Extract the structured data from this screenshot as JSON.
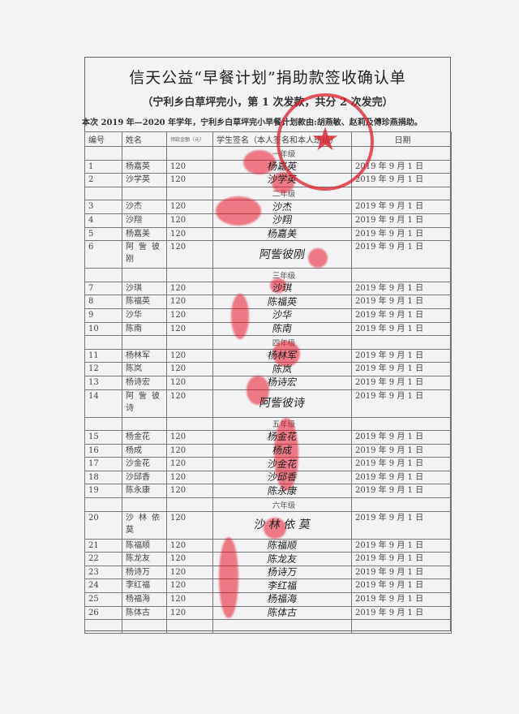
{
  "document": {
    "title": "信天公益“早餐计划”捐助款签收确认单",
    "subtitle": "（宁利乡白草坪完小，第 1 次发款，共分 2 次发完）",
    "note": "本次 2019 年—2020 年学年，宁利乡白草坪完小早餐计划款由:胡燕敏、赵莉及傅珍燕捐助。",
    "stamp_color": "#dc1e28"
  },
  "table": {
    "headers": [
      "编号",
      "姓名",
      "领款金额（元）",
      "学生签名（本人签名和本人班级）",
      "日期"
    ],
    "rows": [
      {
        "type": "grade",
        "label": "一年级"
      },
      {
        "type": "student",
        "no": "1",
        "name": "杨嘉英",
        "amount": "120",
        "signature": "杨嘉英",
        "date": "2019 年 9 月 1 日"
      },
      {
        "type": "student",
        "no": "2",
        "name": "沙学英",
        "amount": "120",
        "signature": "沙学英",
        "date": "2019 年 9 月 1 日"
      },
      {
        "type": "grade",
        "label": "二年级"
      },
      {
        "type": "student",
        "no": "3",
        "name": "沙杰",
        "amount": "120",
        "signature": "沙杰",
        "date": "2019 年 9 月 1 日"
      },
      {
        "type": "student",
        "no": "4",
        "name": "沙翔",
        "amount": "120",
        "signature": "沙翔",
        "date": "2019 年 9 月 1 日"
      },
      {
        "type": "student",
        "no": "5",
        "name": "杨嘉美",
        "amount": "120",
        "signature": "杨嘉美",
        "date": "2019 年 9 月 1 日"
      },
      {
        "type": "student",
        "no": "6",
        "name": "阿訾彼刚",
        "amount": "120",
        "signature": "阿訾彼刚",
        "date": "2019 年 9 月 1 日",
        "double": true
      },
      {
        "type": "grade",
        "label": "三年级"
      },
      {
        "type": "student",
        "no": "7",
        "name": "沙琪",
        "amount": "120",
        "signature": "沙琪",
        "date": "2019 年 9 月 1 日"
      },
      {
        "type": "student",
        "no": "8",
        "name": "陈福英",
        "amount": "120",
        "signature": "陈福英",
        "date": "2019 年 9 月 1 日"
      },
      {
        "type": "student",
        "no": "9",
        "name": "沙华",
        "amount": "120",
        "signature": "沙华",
        "date": "2019 年 9 月 1 日"
      },
      {
        "type": "student",
        "no": "10",
        "name": "陈南",
        "amount": "120",
        "signature": "陈南",
        "date": "2019 年 9 月 1 日"
      },
      {
        "type": "grade",
        "label": "四年级"
      },
      {
        "type": "student",
        "no": "11",
        "name": "杨林军",
        "amount": "120",
        "signature": "杨林军",
        "date": "2019 年 9 月 1 日"
      },
      {
        "type": "student",
        "no": "12",
        "name": "陈岚",
        "amount": "120",
        "signature": "陈岚",
        "date": "2019 年 9 月 1 日"
      },
      {
        "type": "student",
        "no": "13",
        "name": "杨诗宏",
        "amount": "120",
        "signature": "杨诗宏",
        "date": "2019 年 9 月 1 日"
      },
      {
        "type": "student",
        "no": "14",
        "name": "阿訾彼诗",
        "amount": "120",
        "signature": "阿訾彼诗",
        "date": "2019 年 9 月 1 日",
        "double": true
      },
      {
        "type": "grade",
        "label": "五年级"
      },
      {
        "type": "student",
        "no": "15",
        "name": "杨金花",
        "amount": "120",
        "signature": "杨金花",
        "date": "2019 年 9 月 1 日"
      },
      {
        "type": "student",
        "no": "16",
        "name": "杨成",
        "amount": "120",
        "signature": "杨成",
        "date": "2019 年 9 月 1 日"
      },
      {
        "type": "student",
        "no": "17",
        "name": "沙金花",
        "amount": "120",
        "signature": "沙金花",
        "date": "2019 年 9 月 1 日"
      },
      {
        "type": "student",
        "no": "18",
        "name": "沙邱香",
        "amount": "120",
        "signature": "沙邱香",
        "date": "2019 年 9 月 1 日"
      },
      {
        "type": "student",
        "no": "19",
        "name": "陈永康",
        "amount": "120",
        "signature": "陈永康",
        "date": "2019 年 9 月 1 日"
      },
      {
        "type": "grade",
        "label": "六年级"
      },
      {
        "type": "student",
        "no": "20",
        "name": "沙林依莫",
        "amount": "120",
        "signature": "沙 林 依 莫",
        "date": "2019 年 9 月 1 日",
        "double": true
      },
      {
        "type": "student",
        "no": "21",
        "name": "陈福顺",
        "amount": "120",
        "signature": "陈福顺",
        "date": "2019 年 9 月 1 日"
      },
      {
        "type": "student",
        "no": "22",
        "name": "陈龙友",
        "amount": "120",
        "signature": "陈龙友",
        "date": "2019 年 9 月 1 日"
      },
      {
        "type": "student",
        "no": "23",
        "name": "杨诗万",
        "amount": "120",
        "signature": "杨诗万",
        "date": "2019 年 9 月 1 日"
      },
      {
        "type": "student",
        "no": "24",
        "name": "李红福",
        "amount": "120",
        "signature": "李红福",
        "date": "2019 年 9 月 1 日"
      },
      {
        "type": "student",
        "no": "25",
        "name": "杨福海",
        "amount": "120",
        "signature": "杨福海",
        "date": "2019 年 9 月 1 日"
      },
      {
        "type": "student",
        "no": "26",
        "name": "陈体古",
        "amount": "120",
        "signature": "陈体古",
        "date": "2019 年 9 月 1 日"
      },
      {
        "type": "blank"
      }
    ]
  }
}
